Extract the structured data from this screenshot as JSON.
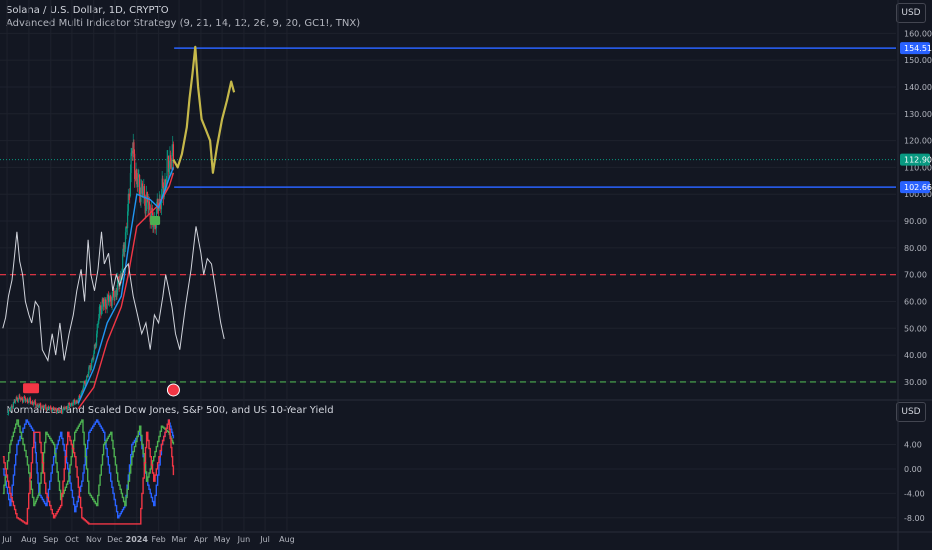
{
  "header": {
    "symbol": "Solana / U.S. Dollar, 1D, CRYPTO",
    "strategy": "Advanced Multi Indicator Strategy (9, 21, 14, 12, 26, 9, 20, GC1!, TNX)",
    "sub_title": "Normalized and Scaled Dow Jones, S&P 500, and US 10-Year Yield",
    "currency_main": "USD",
    "currency_sub": "USD"
  },
  "colors": {
    "background": "#131722",
    "grid": "#1e222d",
    "price_label": "#2962ff",
    "current_label": "#089981",
    "overbought": "#f23645",
    "oversold": "#4caf50",
    "rsi": "#d1d4dc",
    "ema_fast": "#2196f3",
    "ema_slow": "#f23645",
    "candle_up": "#089981",
    "candle_down": "#f23645",
    "projection": "#c5b84a",
    "dow": "#2962ff",
    "sp500": "#4caf50",
    "tnx": "#f23645"
  },
  "chart_data": [
    {
      "type": "candlestick",
      "title": "Solana / U.S. Dollar, 1D, CRYPTO",
      "y_axis_labels": [
        "160.00",
        "150.00",
        "140.00",
        "130.00",
        "120.00",
        "110.00",
        "100.00",
        "90.00",
        "80.00",
        "70.00",
        "60.00",
        "50.00",
        "40.00",
        "30.00"
      ],
      "ylim": [
        24,
        162
      ],
      "x_axis_labels": [
        "Jul",
        "Aug",
        "Sep",
        "Oct",
        "Nov",
        "Dec",
        "2024",
        "Feb",
        "Mar",
        "Apr",
        "May",
        "Jun",
        "Jul",
        "Aug"
      ],
      "price_tags": {
        "resistance": "154.51",
        "current": "112.90",
        "support": "102.66"
      },
      "levels": {
        "resistance": 154.51,
        "current": 112.9,
        "support": 102.66,
        "overbought": 70,
        "oversold": 30
      },
      "price_series": [
        [
          "2023-07-01",
          18
        ],
        [
          "2023-07-15",
          24
        ],
        [
          "2023-08-01",
          23
        ],
        [
          "2023-08-15",
          21
        ],
        [
          "2023-09-01",
          20
        ],
        [
          "2023-09-15",
          19
        ],
        [
          "2023-10-01",
          22
        ],
        [
          "2023-10-10",
          23
        ],
        [
          "2023-10-20",
          30
        ],
        [
          "2023-11-01",
          40
        ],
        [
          "2023-11-10",
          58
        ],
        [
          "2023-11-20",
          60
        ],
        [
          "2023-11-30",
          62
        ],
        [
          "2023-12-10",
          70
        ],
        [
          "2023-12-20",
          95
        ],
        [
          "2023-12-25",
          118
        ],
        [
          "2024-01-01",
          105
        ],
        [
          "2024-01-10",
          100
        ],
        [
          "2024-01-20",
          94
        ],
        [
          "2024-01-25",
          88
        ],
        [
          "2024-02-01",
          96
        ],
        [
          "2024-02-10",
          104
        ],
        [
          "2024-02-16",
          113
        ],
        [
          "2024-02-22",
          112.9
        ]
      ],
      "projection_series": [
        [
          "2024-02-22",
          112.9
        ],
        [
          "2024-02-28",
          110
        ],
        [
          "2024-03-05",
          115
        ],
        [
          "2024-03-12",
          125
        ],
        [
          "2024-03-16",
          136
        ],
        [
          "2024-03-20",
          145
        ],
        [
          "2024-03-24",
          155
        ],
        [
          "2024-03-28",
          140
        ],
        [
          "2024-04-02",
          128
        ],
        [
          "2024-04-08",
          124
        ],
        [
          "2024-04-14",
          120
        ],
        [
          "2024-04-18",
          108
        ],
        [
          "2024-04-24",
          118
        ],
        [
          "2024-05-01",
          128
        ],
        [
          "2024-05-08",
          135
        ],
        [
          "2024-05-14",
          142
        ],
        [
          "2024-05-18",
          138
        ]
      ],
      "ema_fast": [
        [
          "2023-10-10",
          22
        ],
        [
          "2023-11-01",
          35
        ],
        [
          "2023-11-20",
          52
        ],
        [
          "2023-12-10",
          62
        ],
        [
          "2023-12-20",
          80
        ],
        [
          "2024-01-01",
          100
        ],
        [
          "2024-01-20",
          98
        ],
        [
          "2024-02-01",
          95
        ],
        [
          "2024-02-16",
          106
        ],
        [
          "2024-02-22",
          110
        ]
      ],
      "ema_slow": [
        [
          "2023-10-10",
          20
        ],
        [
          "2023-11-01",
          28
        ],
        [
          "2023-11-20",
          45
        ],
        [
          "2023-12-10",
          58
        ],
        [
          "2023-12-20",
          70
        ],
        [
          "2024-01-01",
          88
        ],
        [
          "2024-01-20",
          93
        ],
        [
          "2024-02-01",
          96
        ],
        [
          "2024-02-16",
          103
        ],
        [
          "2024-02-22",
          108
        ]
      ],
      "rsi_series": [
        [
          "2023-06-25",
          50
        ],
        [
          "2023-06-29",
          54
        ],
        [
          "2023-07-03",
          62
        ],
        [
          "2023-07-08",
          68
        ],
        [
          "2023-07-12",
          78
        ],
        [
          "2023-07-15",
          86
        ],
        [
          "2023-07-19",
          75
        ],
        [
          "2023-07-23",
          70
        ],
        [
          "2023-07-27",
          60
        ],
        [
          "2023-08-01",
          55
        ],
        [
          "2023-08-05",
          52
        ],
        [
          "2023-08-10",
          60
        ],
        [
          "2023-08-15",
          58
        ],
        [
          "2023-08-20",
          42
        ],
        [
          "2023-08-28",
          38
        ],
        [
          "2023-09-03",
          48
        ],
        [
          "2023-09-08",
          40
        ],
        [
          "2023-09-14",
          52
        ],
        [
          "2023-09-20",
          38
        ],
        [
          "2023-09-27",
          48
        ],
        [
          "2023-10-03",
          55
        ],
        [
          "2023-10-08",
          64
        ],
        [
          "2023-10-14",
          72
        ],
        [
          "2023-10-19",
          60
        ],
        [
          "2023-10-24",
          83
        ],
        [
          "2023-10-28",
          70
        ],
        [
          "2023-11-02",
          64
        ],
        [
          "2023-11-07",
          72
        ],
        [
          "2023-11-12",
          86
        ],
        [
          "2023-11-16",
          74
        ],
        [
          "2023-11-22",
          78
        ],
        [
          "2023-11-28",
          64
        ],
        [
          "2023-12-03",
          70
        ],
        [
          "2023-12-08",
          66
        ],
        [
          "2023-12-14",
          72
        ],
        [
          "2023-12-20",
          74
        ],
        [
          "2023-12-27",
          62
        ],
        [
          "2024-01-02",
          55
        ],
        [
          "2024-01-08",
          48
        ],
        [
          "2024-01-14",
          52
        ],
        [
          "2024-01-20",
          42
        ],
        [
          "2024-01-26",
          55
        ],
        [
          "2024-02-01",
          52
        ],
        [
          "2024-02-07",
          62
        ],
        [
          "2024-02-11",
          70
        ],
        [
          "2024-02-15",
          65
        ],
        [
          "2024-02-20",
          58
        ],
        [
          "2024-02-25",
          48
        ],
        [
          "2024-03-02",
          42
        ],
        [
          "2024-03-10",
          58
        ],
        [
          "2024-03-18",
          72
        ],
        [
          "2024-03-25",
          88
        ],
        [
          "2024-04-01",
          78
        ],
        [
          "2024-04-05",
          70
        ],
        [
          "2024-04-10",
          76
        ],
        [
          "2024-04-16",
          74
        ],
        [
          "2024-04-22",
          64
        ],
        [
          "2024-04-29",
          52
        ],
        [
          "2024-05-04",
          46
        ]
      ]
    },
    {
      "type": "line",
      "title": "Normalized and Scaled Dow Jones, S&P 500, and US 10-Year Yield",
      "y_axis_labels": [
        "4.00",
        "0.00",
        "-4.00",
        "-8.00"
      ],
      "ylim": [
        -10,
        9
      ],
      "series": [
        {
          "values": [
            [
              "2023-06-25",
              0
            ],
            [
              "2023-07-05",
              -6
            ],
            [
              "2023-07-15",
              4
            ],
            [
              "2023-07-28",
              8
            ],
            [
              "2023-08-08",
              6
            ],
            [
              "2023-08-15",
              -4
            ],
            [
              "2023-08-25",
              -6
            ],
            [
              "2023-09-05",
              2
            ],
            [
              "2023-09-15",
              6
            ],
            [
              "2023-09-25",
              0
            ],
            [
              "2023-10-05",
              -7
            ],
            [
              "2023-10-15",
              -2
            ],
            [
              "2023-10-25",
              6
            ],
            [
              "2023-11-05",
              8
            ],
            [
              "2023-11-15",
              6
            ],
            [
              "2023-11-25",
              -2
            ],
            [
              "2023-12-05",
              -8
            ],
            [
              "2023-12-15",
              -6
            ],
            [
              "2023-12-25",
              4
            ],
            [
              "2024-01-05",
              6
            ],
            [
              "2024-01-15",
              -2
            ],
            [
              "2024-01-25",
              -6
            ],
            [
              "2024-02-05",
              4
            ],
            [
              "2024-02-15",
              8
            ],
            [
              "2024-02-22",
              5
            ]
          ]
        },
        {
          "values": [
            [
              "2023-06-25",
              -4
            ],
            [
              "2023-07-05",
              4
            ],
            [
              "2023-07-15",
              8
            ],
            [
              "2023-07-28",
              2
            ],
            [
              "2023-08-08",
              -6
            ],
            [
              "2023-08-15",
              -4
            ],
            [
              "2023-08-25",
              6
            ],
            [
              "2023-09-05",
              4
            ],
            [
              "2023-09-15",
              -5
            ],
            [
              "2023-09-25",
              -2
            ],
            [
              "2023-10-05",
              6
            ],
            [
              "2023-10-15",
              8
            ],
            [
              "2023-10-25",
              -4
            ],
            [
              "2023-11-05",
              -6
            ],
            [
              "2023-11-15",
              4
            ],
            [
              "2023-11-25",
              6
            ],
            [
              "2023-12-05",
              -2
            ],
            [
              "2023-12-15",
              -6
            ],
            [
              "2023-12-25",
              2
            ],
            [
              "2024-01-05",
              7
            ],
            [
              "2024-01-15",
              -2
            ],
            [
              "2024-01-25",
              2
            ],
            [
              "2024-02-05",
              7
            ],
            [
              "2024-02-15",
              6
            ],
            [
              "2024-02-22",
              4
            ]
          ]
        },
        {
          "values": [
            [
              "2023-06-25",
              2
            ],
            [
              "2023-07-05",
              -4
            ],
            [
              "2023-07-15",
              -8
            ],
            [
              "2023-07-28",
              -9
            ],
            [
              "2023-08-08",
              6
            ],
            [
              "2023-08-15",
              6
            ],
            [
              "2023-08-25",
              -4
            ],
            [
              "2023-09-05",
              -8
            ],
            [
              "2023-09-15",
              -6
            ],
            [
              "2023-09-25",
              6
            ],
            [
              "2023-10-05",
              2
            ],
            [
              "2023-10-15",
              -8
            ],
            [
              "2023-10-25",
              -9
            ],
            [
              "2023-11-05",
              -9
            ],
            [
              "2023-11-15",
              -9
            ],
            [
              "2023-11-25",
              -9
            ],
            [
              "2023-12-05",
              -9
            ],
            [
              "2023-12-15",
              -9
            ],
            [
              "2023-12-25",
              -9
            ],
            [
              "2024-01-05",
              -9
            ],
            [
              "2024-01-15",
              6
            ],
            [
              "2024-01-25",
              -2
            ],
            [
              "2024-02-05",
              4
            ],
            [
              "2024-02-15",
              8
            ],
            [
              "2024-02-22",
              -1
            ]
          ]
        }
      ]
    }
  ]
}
